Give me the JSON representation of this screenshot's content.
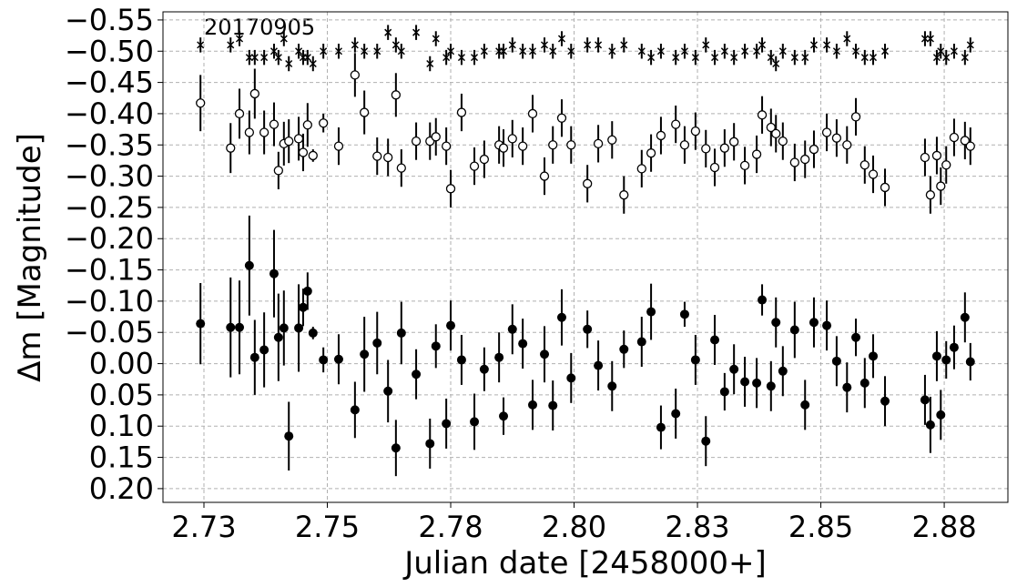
{
  "chart_data": {
    "type": "scatter",
    "annotation": "20170905",
    "x_label": "Julian date [2458000+]",
    "y_label": "Δm [Magnitude]",
    "xlim": [
      2.7167,
      2.8879
    ],
    "ylim": [
      -0.563,
      0.222
    ],
    "y_inverted": true,
    "grid": true,
    "xticks": [
      {
        "value": 2.725,
        "label": "2.73"
      },
      {
        "value": 2.75,
        "label": "2.75"
      },
      {
        "value": 2.775,
        "label": "2.78"
      },
      {
        "value": 2.8,
        "label": "2.80"
      },
      {
        "value": 2.825,
        "label": "2.83"
      },
      {
        "value": 2.85,
        "label": "2.85"
      },
      {
        "value": 2.875,
        "label": "2.88"
      }
    ],
    "yticks": [
      {
        "value": -0.55,
        "label": "−0.55"
      },
      {
        "value": -0.5,
        "label": "−0.50"
      },
      {
        "value": -0.45,
        "label": "−0.45"
      },
      {
        "value": -0.4,
        "label": "−0.40"
      },
      {
        "value": -0.35,
        "label": "−0.35"
      },
      {
        "value": -0.3,
        "label": "−0.30"
      },
      {
        "value": -0.25,
        "label": "−0.25"
      },
      {
        "value": -0.2,
        "label": "−0.20"
      },
      {
        "value": -0.15,
        "label": "−0.15"
      },
      {
        "value": -0.1,
        "label": "−0.10"
      },
      {
        "value": -0.05,
        "label": "−0.05"
      },
      {
        "value": 0,
        "label": "0.00"
      },
      {
        "value": 0.05,
        "label": "0.05"
      },
      {
        "value": 0.1,
        "label": "0.10"
      },
      {
        "value": 0.15,
        "label": "0.15"
      },
      {
        "value": 0.2,
        "label": "0.20"
      }
    ],
    "x": [
      2.7243,
      2.7304,
      2.7322,
      2.7342,
      2.7353,
      2.7372,
      2.7392,
      2.7401,
      2.7412,
      2.7422,
      2.7442,
      2.7451,
      2.746,
      2.7471,
      2.7492,
      2.7523,
      2.7556,
      2.7575,
      2.7601,
      2.7623,
      2.7639,
      2.765,
      2.768,
      2.7708,
      2.772,
      2.7741,
      2.775,
      2.7772,
      2.7798,
      2.7818,
      2.7848,
      2.7857,
      2.7875,
      2.7896,
      2.7916,
      2.794,
      2.7957,
      2.7975,
      2.7994,
      2.8027,
      2.8049,
      2.8077,
      2.8101,
      2.8137,
      2.8156,
      2.8176,
      2.8206,
      2.8224,
      2.8246,
      2.8267,
      2.8285,
      2.8305,
      2.8324,
      2.8346,
      2.837,
      2.8381,
      2.8399,
      2.8409,
      2.8423,
      2.8447,
      2.8468,
      2.8486,
      2.8512,
      2.8532,
      2.8553,
      2.8571,
      2.8589,
      2.8606,
      2.863,
      2.8711,
      2.8722,
      2.8735,
      2.8743,
      2.8754,
      2.877,
      2.8792,
      2.8803
    ],
    "series": [
      {
        "marker": "x",
        "color": "#000000",
        "values": [
          -0.51,
          -0.51,
          -0.52,
          -0.49,
          -0.49,
          -0.49,
          -0.5,
          -0.49,
          -0.52,
          -0.48,
          -0.5,
          -0.49,
          -0.49,
          -0.48,
          -0.5,
          -0.5,
          -0.51,
          -0.5,
          -0.5,
          -0.53,
          -0.51,
          -0.5,
          -0.53,
          -0.48,
          -0.52,
          -0.49,
          -0.5,
          -0.49,
          -0.49,
          -0.5,
          -0.5,
          -0.5,
          -0.51,
          -0.5,
          -0.5,
          -0.51,
          -0.5,
          -0.52,
          -0.5,
          -0.51,
          -0.51,
          -0.5,
          -0.51,
          -0.5,
          -0.49,
          -0.5,
          -0.49,
          -0.5,
          -0.49,
          -0.51,
          -0.49,
          -0.5,
          -0.49,
          -0.5,
          -0.5,
          -0.51,
          -0.49,
          -0.48,
          -0.5,
          -0.49,
          -0.49,
          -0.51,
          -0.51,
          -0.5,
          -0.52,
          -0.5,
          -0.49,
          -0.49,
          -0.5,
          -0.52,
          -0.52,
          -0.49,
          -0.5,
          -0.49,
          -0.5,
          -0.49,
          -0.51
        ],
        "errors": [
          0.012,
          0.012,
          0.012,
          0.012,
          0.012,
          0.012,
          0.012,
          0.012,
          0.012,
          0.012,
          0.012,
          0.012,
          0.012,
          0.012,
          0.012,
          0.012,
          0.012,
          0.012,
          0.012,
          0.012,
          0.012,
          0.012,
          0.012,
          0.012,
          0.012,
          0.012,
          0.012,
          0.012,
          0.012,
          0.012,
          0.012,
          0.012,
          0.012,
          0.012,
          0.012,
          0.012,
          0.012,
          0.012,
          0.012,
          0.012,
          0.012,
          0.012,
          0.012,
          0.012,
          0.012,
          0.012,
          0.012,
          0.012,
          0.012,
          0.012,
          0.012,
          0.012,
          0.012,
          0.012,
          0.012,
          0.012,
          0.012,
          0.012,
          0.012,
          0.012,
          0.012,
          0.012,
          0.012,
          0.012,
          0.012,
          0.012,
          0.012,
          0.012,
          0.012,
          0.012,
          0.012,
          0.012,
          0.012,
          0.012,
          0.012,
          0.012,
          0.012
        ]
      },
      {
        "marker": "open",
        "color": "#000000",
        "values": [
          -0.417,
          -0.345,
          -0.4,
          -0.37,
          -0.432,
          -0.37,
          -0.383,
          -0.309,
          -0.352,
          -0.356,
          -0.36,
          -0.338,
          -0.382,
          -0.333,
          -0.385,
          -0.348,
          -0.462,
          -0.402,
          -0.332,
          -0.33,
          -0.43,
          -0.313,
          -0.356,
          -0.356,
          -0.363,
          -0.348,
          -0.28,
          -0.402,
          -0.316,
          -0.327,
          -0.35,
          -0.345,
          -0.36,
          -0.348,
          -0.4,
          -0.3,
          -0.35,
          -0.393,
          -0.35,
          -0.288,
          -0.352,
          -0.358,
          -0.27,
          -0.312,
          -0.337,
          -0.365,
          -0.383,
          -0.35,
          -0.372,
          -0.344,
          -0.314,
          -0.345,
          -0.355,
          -0.317,
          -0.335,
          -0.398,
          -0.378,
          -0.368,
          -0.356,
          -0.322,
          -0.327,
          -0.343,
          -0.37,
          -0.361,
          -0.35,
          -0.395,
          -0.318,
          -0.303,
          -0.282,
          -0.33,
          -0.27,
          -0.333,
          -0.284,
          -0.318,
          -0.362,
          -0.357,
          -0.348
        ],
        "errors": [
          0.045,
          0.04,
          0.04,
          0.035,
          0.04,
          0.035,
          0.035,
          0.03,
          0.035,
          0.035,
          0.035,
          0.03,
          0.035,
          0.01,
          0.015,
          0.03,
          0.035,
          0.035,
          0.03,
          0.03,
          0.035,
          0.03,
          0.03,
          0.03,
          0.03,
          0.03,
          0.03,
          0.03,
          0.03,
          0.03,
          0.03,
          0.03,
          0.03,
          0.03,
          0.03,
          0.03,
          0.03,
          0.03,
          0.03,
          0.03,
          0.03,
          0.03,
          0.03,
          0.03,
          0.03,
          0.03,
          0.03,
          0.03,
          0.03,
          0.03,
          0.03,
          0.03,
          0.03,
          0.03,
          0.03,
          0.03,
          0.03,
          0.03,
          0.03,
          0.03,
          0.03,
          0.03,
          0.03,
          0.03,
          0.03,
          0.03,
          0.03,
          0.03,
          0.03,
          0.03,
          0.03,
          0.03,
          0.03,
          0.03,
          0.03,
          0.03,
          0.03
        ]
      },
      {
        "marker": "filled",
        "color": "#000000",
        "values": [
          -0.064,
          -0.058,
          -0.058,
          -0.157,
          -0.01,
          -0.022,
          -0.144,
          -0.042,
          -0.057,
          0.116,
          -0.057,
          -0.09,
          -0.116,
          -0.049,
          -0.006,
          -0.007,
          0.074,
          -0.015,
          -0.033,
          0.044,
          0.135,
          -0.049,
          0.017,
          0.128,
          -0.028,
          0.096,
          -0.061,
          -0.006,
          0.093,
          0.009,
          -0.01,
          0.084,
          -0.055,
          -0.032,
          0.066,
          -0.015,
          0.067,
          -0.074,
          0.023,
          -0.055,
          0.003,
          0.036,
          -0.023,
          -0.035,
          -0.083,
          0.102,
          0.08,
          -0.079,
          -0.006,
          0.124,
          -0.038,
          0.045,
          0.009,
          0.029,
          0.031,
          -0.102,
          0.036,
          -0.066,
          0.012,
          -0.054,
          0.066,
          -0.066,
          -0.061,
          -0.004,
          0.038,
          -0.042,
          0.031,
          -0.012,
          0.06,
          0.058,
          0.098,
          -0.012,
          0.082,
          -0.006,
          -0.026,
          -0.074,
          -0.003
        ],
        "errors": [
          0.065,
          0.08,
          0.075,
          0.08,
          0.06,
          0.06,
          0.07,
          0.07,
          0.06,
          0.055,
          0.07,
          0.03,
          0.03,
          0.01,
          0.02,
          0.04,
          0.045,
          0.06,
          0.05,
          0.05,
          0.045,
          0.05,
          0.04,
          0.04,
          0.035,
          0.04,
          0.04,
          0.04,
          0.045,
          0.035,
          0.04,
          0.03,
          0.04,
          0.04,
          0.04,
          0.045,
          0.04,
          0.045,
          0.04,
          0.03,
          0.04,
          0.04,
          0.03,
          0.04,
          0.045,
          0.035,
          0.04,
          0.02,
          0.04,
          0.04,
          0.04,
          0.03,
          0.04,
          0.04,
          0.04,
          0.025,
          0.04,
          0.04,
          0.04,
          0.045,
          0.04,
          0.04,
          0.04,
          0.04,
          0.04,
          0.03,
          0.04,
          0.035,
          0.04,
          0.04,
          0.045,
          0.04,
          0.04,
          0.03,
          0.035,
          0.04,
          0.03
        ]
      }
    ]
  }
}
